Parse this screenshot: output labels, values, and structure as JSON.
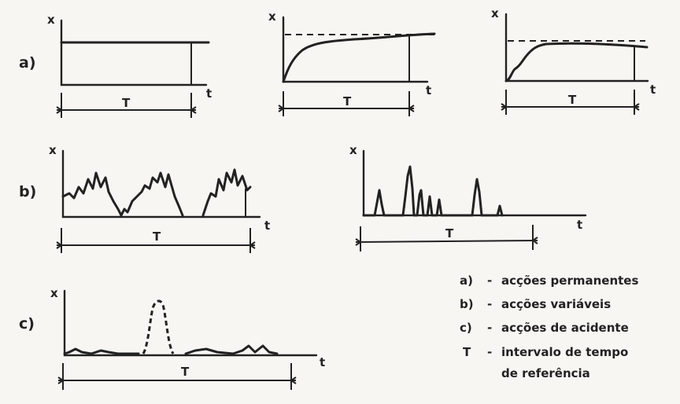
{
  "rows": {
    "a": "a)",
    "b": "b)",
    "c": "c)"
  },
  "axis": {
    "x": "x",
    "t": "t",
    "interval": "T"
  },
  "legend": [
    {
      "key": "a)",
      "dash": "-",
      "text": "acções permanentes"
    },
    {
      "key": "b)",
      "dash": "-",
      "text": "acções variáveis"
    },
    {
      "key": "c)",
      "dash": "-",
      "text": "acções de acidente"
    },
    {
      "key": "T",
      "dash": "-",
      "text": "intervalo de tempo"
    },
    {
      "key": "",
      "dash": "",
      "text": "de referência"
    }
  ]
}
